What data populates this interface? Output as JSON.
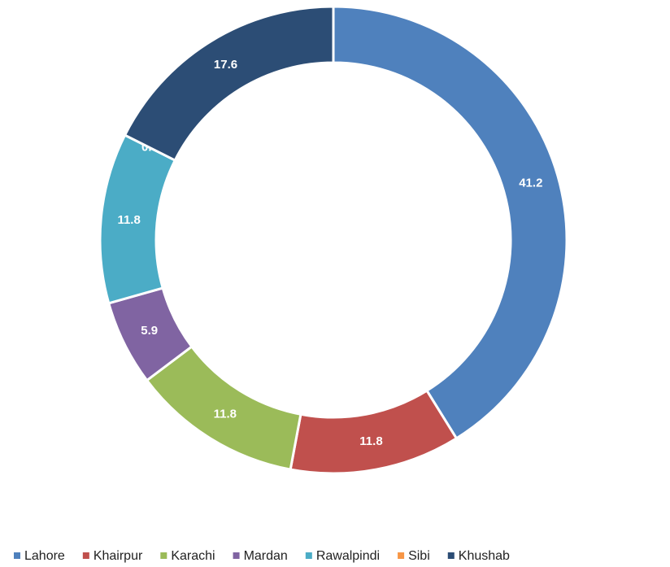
{
  "chart_data": {
    "type": "donut",
    "categories": [
      "Lahore",
      "Khairpur",
      "Karachi",
      "Mardan",
      "Rawalpindi",
      "Sibi",
      "Khushab"
    ],
    "values": [
      41.2,
      11.8,
      11.8,
      5.9,
      11.8,
      0.0,
      17.6
    ],
    "value_labels": [
      "41.2",
      "11.8",
      "11.8",
      "5.9",
      "11.8",
      "0.0",
      "17.6"
    ],
    "colors": [
      "#4f81bd",
      "#c0504d",
      "#9bbb59",
      "#8064a2",
      "#4bacc6",
      "#f79646",
      "#2c4d75"
    ],
    "legend": "bottom"
  }
}
